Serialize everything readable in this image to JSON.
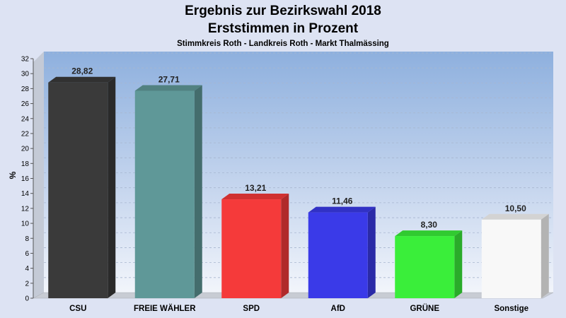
{
  "chart_data": {
    "type": "bar",
    "title": "Ergebnis zur Bezirkswahl 2018",
    "title_line2": "Erststimmen in Prozent",
    "subtitle": "Stimmkreis Roth - Landkreis Roth - Markt Thalmässing",
    "ylabel": "%",
    "xlabel": "",
    "ylim": [
      0,
      32
    ],
    "ytick_step": 2,
    "grid": true,
    "legend": "none",
    "categories": [
      "CSU",
      "FREIE WÄHLER",
      "SPD",
      "AfD",
      "GRÜNE",
      "Sonstige"
    ],
    "values": [
      28.82,
      27.71,
      13.21,
      11.46,
      8.3,
      10.5
    ],
    "value_labels": [
      "28,82",
      "27,71",
      "13,21",
      "11,46",
      "8,30",
      "10,50"
    ],
    "colors": [
      "#3a3a3a",
      "#5f9898",
      "#f53a3a",
      "#3a3ae8",
      "#3aee3a",
      "#f8f8f8"
    ]
  }
}
